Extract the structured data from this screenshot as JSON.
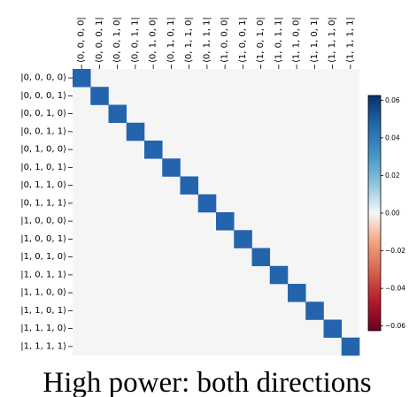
{
  "chart_data": {
    "type": "heatmap",
    "title": "",
    "caption": "High power: both directions",
    "row_labels": [
      "|0, 0, 0, 0⟩",
      "|0, 0, 0, 1⟩",
      "|0, 0, 1, 0⟩",
      "|0, 0, 1, 1⟩",
      "|0, 1, 0, 0⟩",
      "|0, 1, 0, 1⟩",
      "|0, 1, 1, 0⟩",
      "|0, 1, 1, 1⟩",
      "|1, 0, 0, 0⟩",
      "|1, 0, 0, 1⟩",
      "|1, 0, 1, 0⟩",
      "|1, 0, 1, 1⟩",
      "|1, 1, 0, 0⟩",
      "|1, 1, 0, 1⟩",
      "|1, 1, 1, 0⟩",
      "|1, 1, 1, 1⟩"
    ],
    "col_labels": [
      "⟨0, 0, 0, 0|",
      "⟨0, 0, 0, 1|",
      "⟨0, 0, 1, 0|",
      "⟨0, 0, 1, 1|",
      "⟨0, 1, 0, 0|",
      "⟨0, 1, 0, 1|",
      "⟨0, 1, 1, 0|",
      "⟨0, 1, 1, 1|",
      "⟨1, 0, 0, 0|",
      "⟨1, 0, 0, 1|",
      "⟨1, 0, 1, 0|",
      "⟨1, 0, 1, 1|",
      "⟨1, 1, 0, 0|",
      "⟨1, 1, 0, 1|",
      "⟨1, 1, 1, 0|",
      "⟨1, 1, 1, 1|"
    ],
    "diagonal_value": 0.0625,
    "off_diagonal_value": 0.0,
    "colorbar": {
      "vmin": -0.0625,
      "vmax": 0.0625,
      "ticks": [
        0.06,
        0.04,
        0.02,
        0.0,
        -0.02,
        -0.04,
        -0.06
      ],
      "tick_labels": [
        "0.06",
        "0.04",
        "0.02",
        "0.00",
        "−0.02",
        "−0.04",
        "−0.06"
      ],
      "colormap": "RdBu"
    },
    "colors": {
      "diagonal": "#2464ad",
      "background": "#f5f5f5",
      "cb_top": "#08306b",
      "cb_mid": "#f7f7f7",
      "cb_bottom": "#67001f"
    }
  }
}
